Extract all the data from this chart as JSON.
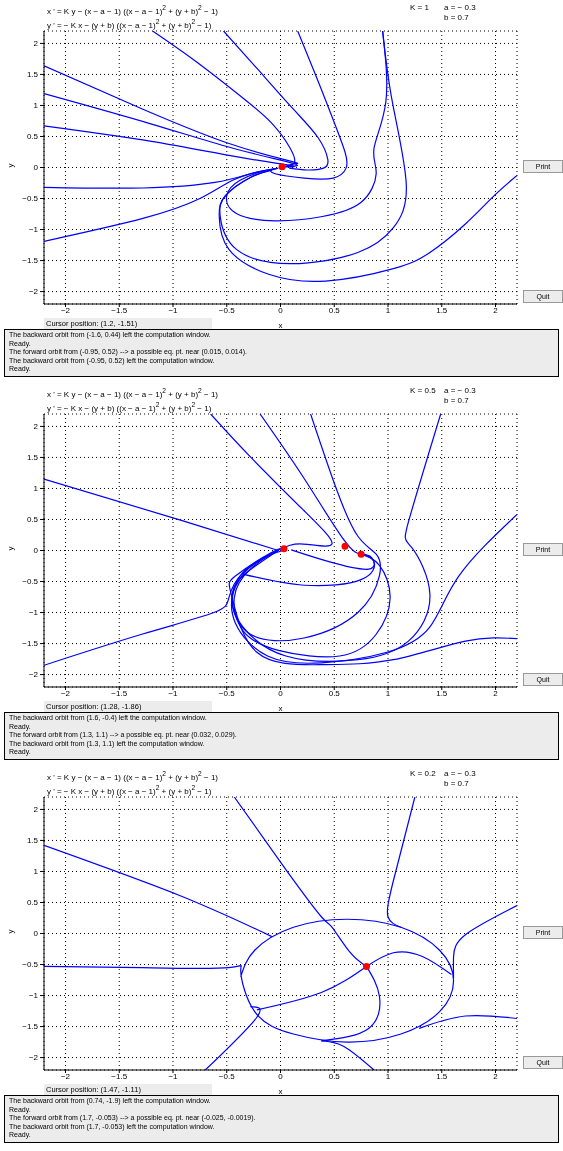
{
  "chart_data": [
    {
      "type": "line",
      "title": "x ' = K y − (x − a − 1) ((x − a − 1)$^{2}$ + (y + b)$^{2}$ − 1)",
      "subtitle": "y ' = − K x − (y + b) ((x − a − 1)$^{2}$ + (y + b)$^{2}$ − 1)",
      "xlabel": "x",
      "ylabel": "y",
      "xlim": [
        -2.2,
        2.2
      ],
      "ylim": [
        -2.2,
        2.2
      ],
      "xticks": [
        -2,
        -1.5,
        -1,
        -0.5,
        0,
        0.5,
        1,
        1.5,
        2
      ],
      "yticks": [
        -2,
        -1.5,
        -1,
        -0.5,
        0,
        0.5,
        1,
        1.5,
        2
      ],
      "grid": true,
      "annotations": [
        "K = 1",
        "a = − 0.3",
        "b = 0.7",
        "Cursor position:  (1.2, -1.51)",
        "The backward orbit from (-1.6, 0.44) left the computation window.",
        "Ready.",
        "The forward orbit from (-0.95, 0.52) --> a possible eq. pt. near (0.015, 0.014).",
        "The backward orbit from (-0.95, 0.52) left the computation window.",
        "Ready.",
        "Print",
        "Quit"
      ],
      "series": [
        {
          "color": "#0000ff",
          "x": [
            -1.19,
            -0.78,
            -0.35,
            -0.08,
            0.09,
            0.13,
            0.06
          ],
          "values": [
            2.2,
            1.7,
            1.12,
            0.71,
            0.31,
            0.08,
            0.02
          ]
        },
        {
          "color": "#0000ff",
          "x": [
            -0.53,
            -0.21,
            0.12,
            0.35,
            0.44,
            0.4,
            0.25,
            0.08
          ],
          "values": [
            2.2,
            1.58,
            0.94,
            0.48,
            0.13,
            -0.01,
            -0.04,
            -0.01
          ]
        },
        {
          "color": "#0000ff",
          "x": [
            0.16,
            0.32,
            0.49,
            0.6,
            0.61,
            0.49,
            0.22,
            -0.05,
            -0.08,
            -0.02
          ],
          "values": [
            2.2,
            1.52,
            0.77,
            0.25,
            -0.01,
            -0.17,
            -0.17,
            -0.1,
            -0.04,
            -0.01
          ]
        },
        {
          "color": "#0000ff",
          "x": [
            0.95,
            0.98,
            0.87,
            0.89,
            0.75,
            0.39,
            -0.05,
            -0.41,
            -0.5,
            -0.38,
            -0.18,
            -0.04
          ],
          "values": [
            2.2,
            1.06,
            0.31,
            -0.1,
            -0.56,
            -0.79,
            -0.86,
            -0.74,
            -0.45,
            -0.21,
            -0.07,
            -0.02
          ]
        },
        {
          "color": "#0000ff",
          "x": [
            0.95,
            1.04,
            1.17,
            1.05,
            0.72,
            0.09,
            -0.41,
            -0.56,
            -0.51,
            -0.28,
            -0.08
          ],
          "values": [
            2.2,
            1.06,
            -0.27,
            -0.97,
            -1.37,
            -1.55,
            -1.32,
            -0.8,
            -0.45,
            -0.16,
            -0.04
          ]
        },
        {
          "color": "#0000ff",
          "x": [
            2.2,
            1.99,
            1.72,
            1.39,
            1.05,
            0.42,
            -0.11,
            -0.48,
            -0.57,
            -0.51,
            -0.28,
            -0.1
          ],
          "values": [
            -0.13,
            -0.45,
            -0.91,
            -1.37,
            -1.63,
            -1.83,
            -1.72,
            -1.32,
            -0.79,
            -0.45,
            -0.16,
            -0.05
          ]
        },
        {
          "color": "#0000ff",
          "x": [
            -2.2,
            -1.28,
            -0.45,
            0.1,
            0.13,
            0.05
          ],
          "values": [
            1.64,
            0.94,
            0.37,
            0.1,
            0.06,
            0.02
          ]
        },
        {
          "color": "#0000ff",
          "x": [
            -2.2,
            -1.2,
            -0.4,
            0.13,
            0.04
          ],
          "values": [
            1.19,
            0.7,
            0.29,
            0.06,
            0.02
          ]
        },
        {
          "color": "#0000ff",
          "x": [
            -2.2,
            -1.2,
            -0.4,
            0.1,
            0.03
          ],
          "values": [
            0.67,
            0.42,
            0.17,
            0.03,
            0.01
          ]
        },
        {
          "color": "#0000ff",
          "x": [
            -2.2,
            -1.28,
            -0.61,
            -0.28,
            -0.05
          ],
          "values": [
            -0.32,
            -0.33,
            -0.24,
            -0.1,
            -0.02
          ]
        },
        {
          "color": "#0000ff",
          "x": [
            -2.2,
            -1.28,
            -0.75,
            -0.45,
            -0.21,
            -0.06
          ],
          "values": [
            -1.19,
            -0.82,
            -0.5,
            -0.21,
            -0.07,
            -0.02
          ]
        },
        {
          "type": "scatter",
          "color": "#ff0000",
          "x": [
            0.015
          ],
          "values": [
            0.014
          ]
        }
      ]
    },
    {
      "type": "line",
      "title": "x ' = K y − (x − a − 1) ((x − a − 1)$^{2}$ + (y + b)$^{2}$ − 1)",
      "subtitle": "y ' = − K x − (y + b) ((x − a − 1)$^{2}$ + (y + b)$^{2}$ − 1)",
      "xlabel": "x",
      "ylabel": "y",
      "xlim": [
        -2.2,
        2.2
      ],
      "ylim": [
        -2.2,
        2.2
      ],
      "xticks": [
        -2,
        -1.5,
        -1,
        -0.5,
        0,
        0.5,
        1,
        1.5,
        2
      ],
      "yticks": [
        -2,
        -1.5,
        -1,
        -0.5,
        0,
        0.5,
        1,
        1.5,
        2
      ],
      "grid": true,
      "annotations": [
        "K = 0.5",
        "a = − 0.3",
        "b = 0.7",
        "Cursor position:  (1.28, -1.86)",
        "The backward orbit from (1.6, -0.4) left the computation window.",
        "Ready.",
        "The forward orbit from (1.3, 1.1) --> a possible eq. pt. near (0.032, 0.029).",
        "The backward orbit from (1.3, 1.1) left the computation window.",
        "Ready.",
        "Print",
        "Quit"
      ],
      "series": [
        {
          "color": "#0000ff",
          "x": [
            -2.2,
            -0.93,
            -0.02
          ],
          "values": [
            1.15,
            0.49,
            0
          ]
        },
        {
          "color": "#0000ff",
          "x": [
            -0.65,
            -0.28,
            0.22,
            0.48,
            0.25,
            0.02,
            -0.28,
            -0.43,
            -0.35,
            -0.02,
            0.55,
            0.89,
            1.02,
            0.92,
            0.75
          ],
          "values": [
            2.2,
            1.51,
            0.64,
            0.11,
            0.1,
            0.04,
            -0.3,
            -0.76,
            -1.29,
            -1.61,
            -1.7,
            -1.35,
            -0.76,
            -0.24,
            -0.06
          ]
        },
        {
          "color": "#0000ff",
          "x": [
            -0.19,
            0.22,
            0.59,
            0.75
          ],
          "values": [
            2.2,
            1.16,
            0.17,
            -0.06
          ]
        },
        {
          "color": "#0000ff",
          "x": [
            0.28,
            0.52,
            0.72,
            0.89,
            0.92,
            0.72,
            0.22,
            -0.28,
            -0.45,
            -0.35,
            -0.02
          ],
          "values": [
            2.2,
            0.99,
            0.23,
            -0.06,
            -0.41,
            -1,
            -1.41,
            -1.35,
            -0.82,
            -0.41,
            0
          ]
        },
        {
          "color": "#0000ff",
          "x": [
            1.49,
            1.19,
            1.22,
            1.39,
            1.19,
            0.72,
            0.05,
            -0.35,
            -0.45,
            -0.32,
            -0.02
          ],
          "values": [
            2.2,
            0.46,
            0.05,
            -0.71,
            -1.46,
            -1.76,
            -1.7,
            -1.23,
            -0.76,
            -0.3,
            0
          ]
        },
        {
          "color": "#0000ff",
          "x": [
            2.2,
            1.66,
            1.39,
            0.99,
            0.38,
            -0.12,
            -0.42,
            -0.42,
            -0.22,
            0.02
          ],
          "values": [
            0.58,
            -0.41,
            -1.23,
            -1.64,
            -1.81,
            -1.7,
            -1.17,
            -0.59,
            -0.18,
            0
          ]
        },
        {
          "color": "#0000ff",
          "x": [
            2.2,
            1.72,
            1.05,
            0.38,
            -0.22,
            -0.45,
            -0.42,
            -0.08,
            0.03
          ],
          "values": [
            -1.42,
            -1.46,
            -1.76,
            -1.84,
            -1.64,
            -0.76,
            -0.41,
            -0.03,
            0.02
          ]
        },
        {
          "color": "#0000ff",
          "x": [
            -2.2,
            -1.29,
            -0.62,
            -0.48,
            -0.35,
            -0.02
          ],
          "values": [
            -1.85,
            -1.35,
            -1,
            -0.76,
            -0.36,
            0
          ]
        },
        {
          "color": "#0000ff",
          "x": [
            -0.35,
            0.22,
            0.75,
            0.87,
            0.75
          ],
          "values": [
            -0.38,
            -0.56,
            -0.47,
            -0.18,
            -0.06
          ]
        },
        {
          "color": "#0000ff",
          "x": [
            0.1,
            0.45,
            0.82,
            0.85,
            0.75
          ],
          "values": [
            0.01,
            -0.18,
            -0.3,
            -0.12,
            -0.06
          ]
        },
        {
          "type": "scatter",
          "color": "#ff0000",
          "x": [
            0.032,
            0.6,
            0.75
          ],
          "values": [
            0.029,
            0.07,
            -0.06
          ]
        }
      ]
    },
    {
      "type": "line",
      "title": "x ' = K y − (x − a − 1) ((x − a − 1)$^{2}$ + (y + b)$^{2}$ − 1)",
      "subtitle": "y ' = − K x − (y + b) ((x − a − 1)$^{2}$ + (y + b)$^{2}$ − 1)",
      "xlabel": "x",
      "ylabel": "y",
      "xlim": [
        -2.2,
        2.2
      ],
      "ylim": [
        -2.2,
        2.2
      ],
      "xticks": [
        -2,
        -1.5,
        -1,
        -0.5,
        0,
        0.5,
        1,
        1.5,
        2
      ],
      "yticks": [
        -2,
        -1.5,
        -1,
        -0.5,
        0,
        0.5,
        1,
        1.5,
        2
      ],
      "grid": true,
      "annotations": [
        "K = 0.2",
        "a = − 0.3",
        "b = 0.7",
        "Cursor position:  (1.47, -1.11)",
        "The backward orbit from (0.74, -1.9) left the computation window.",
        "Ready.",
        "The forward orbit from (1.7, -0.053) --> a possible eq. pt. near (-0.025, -0.0019).",
        "The backward orbit from (1.7, -0.053) left the computation window.",
        "Ready.",
        "Print",
        "Quit"
      ],
      "series": [
        {
          "color": "#0000ff",
          "x": [
            -2.2,
            -1.29,
            -0.48,
            -0.37,
            -0.24,
            0.12,
            0.62,
            1.12,
            1.48,
            1.61,
            1.48,
            1.12,
            0.62,
            0.12,
            -0.24,
            -0.37
          ],
          "values": [
            -0.53,
            -0.55,
            -0.55,
            -0.6,
            -1.26,
            -1.62,
            -1.75,
            -1.62,
            -1.26,
            -0.76,
            -0.27,
            0.1,
            0.23,
            0.1,
            -0.27,
            -0.7
          ]
        },
        {
          "color": "#0000ff",
          "x": [
            -2.2,
            -0.95,
            -0.08
          ],
          "values": [
            1.42,
            0.62,
            -0.05
          ]
        },
        {
          "color": "#0000ff",
          "x": [
            -0.43,
            0.05,
            0.38,
            0.48,
            0.65,
            0.8
          ],
          "values": [
            2.2,
            1.03,
            0.27,
            0.1,
            -0.31,
            -0.53
          ]
        },
        {
          "color": "#0000ff",
          "x": [
            1.25,
            1.05,
            1,
            1.12
          ],
          "values": [
            2.2,
            0.85,
            0.27,
            0.1
          ]
        },
        {
          "color": "#0000ff",
          "x": [
            2.2,
            1.72,
            1.61,
            1.61
          ],
          "values": [
            0.45,
            -0.02,
            -0.37,
            -0.72
          ]
        },
        {
          "color": "#0000ff",
          "x": [
            2.2,
            1.72,
            1.29
          ],
          "values": [
            -1.37,
            -1.33,
            -1.53
          ]
        },
        {
          "color": "#0000ff",
          "x": [
            -0.7,
            -0.22,
            -0.28
          ],
          "values": [
            -2.2,
            -1.35,
            -1.18
          ]
        },
        {
          "color": "#0000ff",
          "x": [
            0.87,
            0.59,
            0.38
          ],
          "values": [
            -2.2,
            -1.82,
            -1.73
          ]
        },
        {
          "color": "#0000ff",
          "x": [
            0.8,
            0.38,
            -0.22
          ],
          "values": [
            -0.53,
            -0.95,
            -1.23
          ]
        },
        {
          "color": "#0000ff",
          "x": [
            0.8,
            0.92,
            0.82,
            0.38
          ],
          "values": [
            -0.53,
            -1.01,
            -1.53,
            -1.73
          ]
        },
        {
          "color": "#0000ff",
          "x": [
            0.8,
            1.05,
            1.32,
            1.59
          ],
          "values": [
            -0.53,
            -0.31,
            -0.37,
            -0.66
          ]
        },
        {
          "type": "scatter",
          "color": "#ff0000",
          "x": [
            0.8
          ],
          "values": [
            -0.53
          ]
        }
      ]
    }
  ]
}
